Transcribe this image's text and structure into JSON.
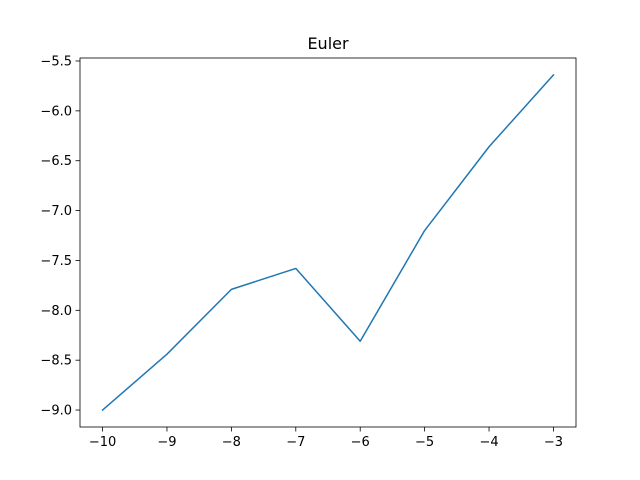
{
  "chart_data": {
    "type": "line",
    "title": "Euler",
    "xlabel": "",
    "ylabel": "",
    "xlim": [
      -10.35,
      -2.65
    ],
    "ylim": [
      -9.17,
      -5.47
    ],
    "x_ticks": [
      -10,
      -9,
      -8,
      -7,
      -6,
      -5,
      -4,
      -3
    ],
    "x_tick_labels": [
      "−10",
      "−9",
      "−8",
      "−7",
      "−6",
      "−5",
      "−4",
      "−3"
    ],
    "y_ticks": [
      -9.0,
      -8.5,
      -8.0,
      -7.5,
      -7.0,
      -6.5,
      -6.0,
      -5.5
    ],
    "y_tick_labels": [
      "−9.0",
      "−8.5",
      "−8.0",
      "−7.5",
      "−7.0",
      "−6.5",
      "−6.0",
      "−5.5"
    ],
    "grid": false,
    "legend": "none",
    "series": [
      {
        "color": "#1f77b4",
        "x": [
          -10,
          -9,
          -8,
          -7,
          -6,
          -5,
          -4,
          -3
        ],
        "y": [
          -9.0,
          -8.44,
          -7.79,
          -7.58,
          -8.31,
          -7.2,
          -6.36,
          -5.64
        ]
      }
    ]
  }
}
